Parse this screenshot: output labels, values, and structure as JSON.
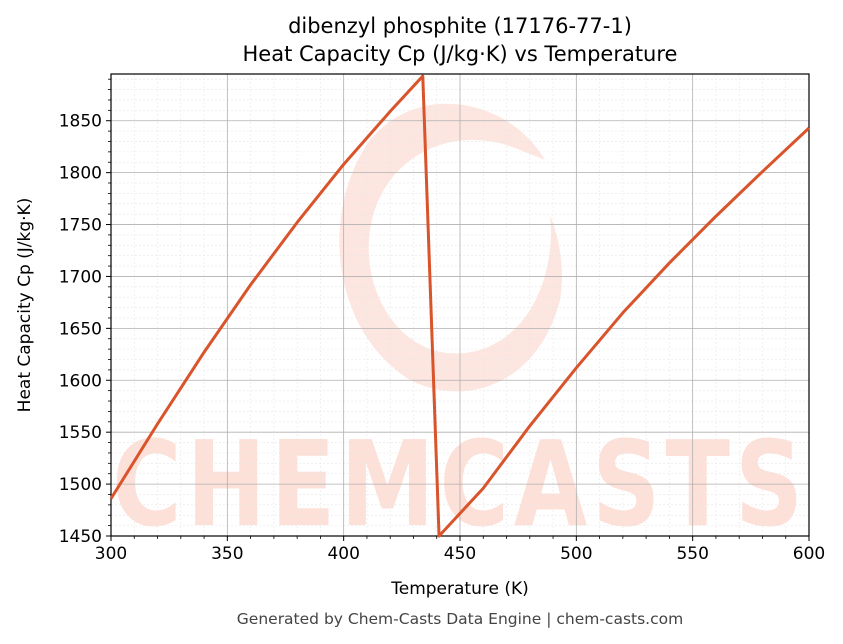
{
  "chart_data": {
    "type": "line",
    "title_line1": "dibenzyl phosphite (17176-77-1)",
    "title_line2": "Heat Capacity Cp (J/kg·K) vs Temperature",
    "xlabel": "Temperature (K)",
    "ylabel": "Heat Capacity Cp (J/kg·K)",
    "xlim": [
      300,
      600
    ],
    "ylim": [
      1450,
      1895
    ],
    "x_ticks": [
      300,
      350,
      400,
      450,
      500,
      550,
      600
    ],
    "y_ticks": [
      1450,
      1500,
      1550,
      1600,
      1650,
      1700,
      1750,
      1800,
      1850
    ],
    "grid": true,
    "series": [
      {
        "color": "#d9532b",
        "points": [
          [
            300,
            1486
          ],
          [
            320,
            1558
          ],
          [
            340,
            1627
          ],
          [
            360,
            1692
          ],
          [
            380,
            1752
          ],
          [
            400,
            1808
          ],
          [
            420,
            1859
          ],
          [
            434,
            1893
          ],
          [
            441,
            1450
          ],
          [
            460,
            1496
          ],
          [
            480,
            1556
          ],
          [
            500,
            1612
          ],
          [
            520,
            1665
          ],
          [
            540,
            1713
          ],
          [
            560,
            1758
          ],
          [
            580,
            1801
          ],
          [
            600,
            1843
          ]
        ]
      }
    ]
  },
  "watermark": {
    "text": "CHEMCASTS",
    "color": "#fde0d8"
  },
  "footer": "Generated by Chem-Casts Data Engine | chem-casts.com"
}
